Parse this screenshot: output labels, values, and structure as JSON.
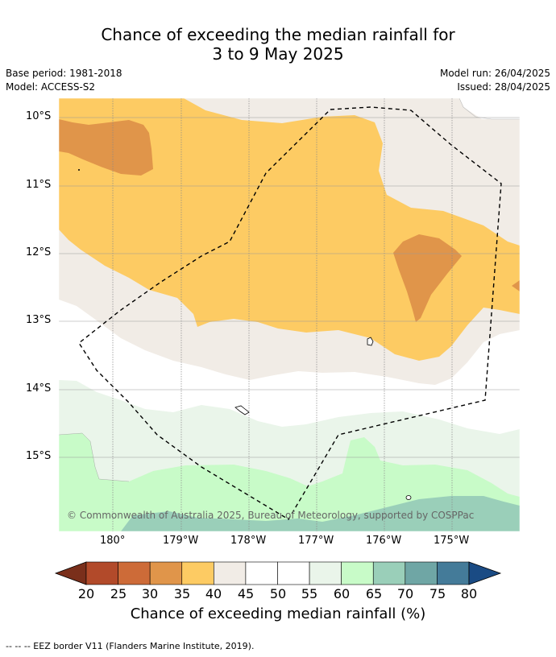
{
  "header": {
    "title_line1": "Chance of exceeding the median rainfall for",
    "title_line2": "3 to 9 May 2025",
    "base_period": "Base period: 1981-2018",
    "model": "Model: ACCESS-S2",
    "model_run": "Model run: 26/04/2025",
    "issued": "Issued: 28/04/2025"
  },
  "map": {
    "lat_labels": [
      "10°S",
      "11°S",
      "12°S",
      "13°S",
      "14°S",
      "15°S"
    ],
    "lon_labels": [
      "180°",
      "179°W",
      "178°W",
      "177°W",
      "176°W",
      "175°W"
    ],
    "copyright": "© Commonwealth of Australia 2025, Bureau of Meteorology, supported by COSPPac"
  },
  "colorbar": {
    "ticks": [
      "20",
      "25",
      "30",
      "35",
      "40",
      "45",
      "50",
      "55",
      "60",
      "65",
      "70",
      "75",
      "80"
    ],
    "colors": [
      "#7a2f1b",
      "#b24a2a",
      "#cd6b38",
      "#e0954a",
      "#fdcb63",
      "#f1ece6",
      "#ffffff",
      "#ffffff",
      "#eaf5ea",
      "#c8fbc8",
      "#9acfb9",
      "#6fa6a5",
      "#447b99",
      "#1a4b84"
    ],
    "label": "Chance of exceeding median rainfall (%)"
  },
  "footer": {
    "legend": "--  --  -- EEZ border V11 (Flanders Marine Institute, 2019)."
  }
}
